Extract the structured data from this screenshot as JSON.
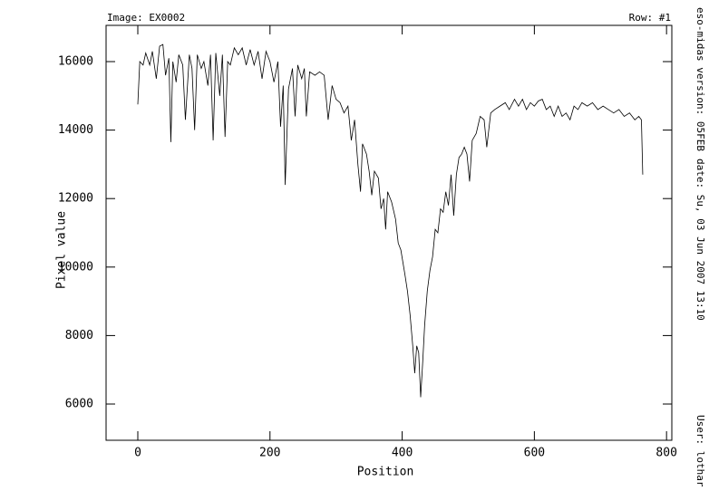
{
  "chart_data": {
    "type": "line",
    "header_left": "Image: EX0002",
    "header_right": "Row: #1",
    "x_label": "Position",
    "y_label": "Pixel value",
    "side_version": "eso-midas version: 05FEB",
    "side_date": "date: Su, 03 Jun 2007 13:10",
    "side_user": "User: lothar",
    "xlim": [
      -48,
      808
    ],
    "ylim": [
      4942,
      17058
    ],
    "xticks": [
      0,
      200,
      400,
      600,
      800
    ],
    "yticks": [
      6000,
      8000,
      10000,
      12000,
      14000,
      16000
    ],
    "color": "#000000",
    "x": [
      0,
      3,
      8,
      12,
      18,
      22,
      28,
      33,
      38,
      42,
      47,
      50,
      53,
      58,
      62,
      68,
      72,
      78,
      82,
      86,
      90,
      96,
      100,
      106,
      110,
      114,
      118,
      124,
      128,
      132,
      136,
      140,
      146,
      152,
      158,
      164,
      170,
      176,
      182,
      188,
      194,
      200,
      206,
      212,
      216,
      220,
      223,
      228,
      234,
      238,
      242,
      248,
      252,
      255,
      260,
      268,
      275,
      282,
      288,
      294,
      300,
      306,
      312,
      318,
      323,
      328,
      333,
      337,
      340,
      346,
      350,
      354,
      358,
      364,
      368,
      372,
      375,
      378,
      384,
      390,
      394,
      398,
      404,
      408,
      412,
      416,
      419,
      422,
      425,
      428,
      431,
      434,
      438,
      442,
      446,
      450,
      454,
      458,
      462,
      466,
      470,
      474,
      478,
      482,
      486,
      490,
      494,
      498,
      502,
      506,
      512,
      518,
      524,
      528,
      534,
      540,
      548,
      556,
      562,
      570,
      576,
      582,
      588,
      594,
      600,
      606,
      612,
      618,
      624,
      630,
      636,
      642,
      648,
      654,
      660,
      666,
      672,
      680,
      688,
      696,
      704,
      712,
      720,
      728,
      736,
      744,
      752,
      758,
      762,
      764
    ],
    "values": [
      14750,
      16000,
      15900,
      16250,
      15900,
      16300,
      15500,
      16450,
      16500,
      15600,
      16100,
      13650,
      16000,
      15400,
      16200,
      15900,
      14300,
      16200,
      15800,
      14000,
      16200,
      15800,
      16000,
      15300,
      16200,
      13700,
      16250,
      15000,
      16200,
      13800,
      16000,
      15900,
      16400,
      16200,
      16400,
      15900,
      16350,
      15900,
      16300,
      15500,
      16300,
      16000,
      15400,
      16000,
      14100,
      15300,
      12400,
      15200,
      15800,
      14400,
      15900,
      15500,
      15800,
      14400,
      15700,
      15600,
      15700,
      15600,
      14300,
      15300,
      14900,
      14800,
      14500,
      14700,
      13700,
      14300,
      13000,
      12200,
      13600,
      13300,
      12800,
      12100,
      12800,
      12600,
      11700,
      12000,
      11100,
      12200,
      11900,
      11400,
      10700,
      10500,
      9800,
      9300,
      8600,
      7700,
      6900,
      7700,
      7500,
      6200,
      7200,
      8300,
      9300,
      9900,
      10300,
      11100,
      11000,
      11700,
      11600,
      12200,
      11800,
      12700,
      11500,
      12700,
      13200,
      13300,
      13500,
      13300,
      12500,
      13700,
      13900,
      14400,
      14300,
      13500,
      14500,
      14600,
      14700,
      14800,
      14600,
      14900,
      14700,
      14900,
      14600,
      14800,
      14700,
      14850,
      14900,
      14600,
      14700,
      14400,
      14700,
      14400,
      14500,
      14300,
      14700,
      14600,
      14800,
      14700,
      14800,
      14600,
      14700,
      14600,
      14500,
      14600,
      14400,
      14500,
      14300,
      14400,
      14300,
      12700
    ]
  }
}
